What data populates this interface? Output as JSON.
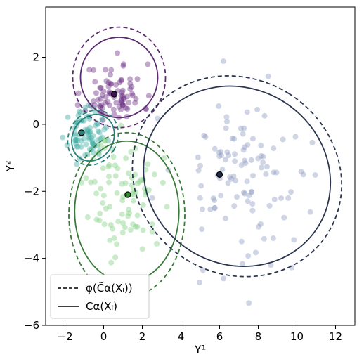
{
  "chart_data": {
    "type": "scatter",
    "title": "",
    "xlabel": "Y¹",
    "ylabel": "Y²",
    "xlim": [
      -3,
      13
    ],
    "ylim": [
      -6,
      3.5
    ],
    "xticks": [
      -2,
      0,
      2,
      4,
      6,
      8,
      10,
      12
    ],
    "yticks": [
      -6,
      -4,
      -2,
      0,
      2
    ],
    "grid": false,
    "legend_position": "lower-left",
    "legend": [
      {
        "label": "φ(C̃α(Xᵢ))",
        "style": "dashed"
      },
      {
        "label": "Cα(Xᵢ)",
        "style": "solid"
      }
    ],
    "clusters": [
      {
        "color": "#5b2a70",
        "point_color": "#6a2c80",
        "center": [
          0.55,
          0.9
        ],
        "spread": [
          0.75,
          0.45
        ],
        "n": 85,
        "seed": 11,
        "solid_ellipse": {
          "cx": 0.8,
          "cy": 1.4,
          "rx": 2.0,
          "ry": 1.2,
          "angle": 0
        },
        "dashed_ellipse": {
          "cx": 0.8,
          "cy": 1.4,
          "rx": 2.4,
          "ry": 1.5,
          "angle": 0
        }
      },
      {
        "color": "#2a7f7a",
        "point_color": "#3aa9a0",
        "center": [
          -0.9,
          -0.3
        ],
        "spread": [
          0.45,
          0.35
        ],
        "n": 75,
        "seed": 23,
        "solid_ellipse": {
          "cx": -0.55,
          "cy": -0.4,
          "rx": 1.05,
          "ry": 0.72,
          "angle": -30
        },
        "dashed_ellipse": {
          "cx": -0.55,
          "cy": -0.4,
          "rx": 1.25,
          "ry": 0.85,
          "angle": -30
        }
      },
      {
        "color": "#3a7a3a",
        "point_color": "#7fd07f",
        "center": [
          1.1,
          -2.1
        ],
        "spread": [
          0.95,
          0.85
        ],
        "n": 90,
        "seed": 37,
        "solid_ellipse": {
          "cx": 1.2,
          "cy": -2.6,
          "rx": 2.7,
          "ry": 2.1,
          "angle": 0
        },
        "dashed_ellipse": {
          "cx": 1.2,
          "cy": -2.7,
          "rx": 3.0,
          "ry": 2.45,
          "angle": 0
        }
      },
      {
        "color": "#2a3550",
        "point_color": "#8f9cc0",
        "center": [
          7.3,
          -1.5
        ],
        "spread": [
          1.8,
          1.35
        ],
        "n": 110,
        "seed": 53,
        "solid_ellipse": {
          "cx": 6.9,
          "cy": -1.55,
          "rx": 4.55,
          "ry": 2.85,
          "angle": 58
        },
        "dashed_ellipse": {
          "cx": 6.9,
          "cy": -1.55,
          "rx": 5.05,
          "ry": 3.2,
          "angle": 58
        }
      }
    ],
    "highlighted_points": [
      {
        "x": 0.55,
        "y": 0.9,
        "color": "#3d1450"
      },
      {
        "x": -1.15,
        "y": -0.25,
        "color": "#2a7f7a"
      },
      {
        "x": 1.25,
        "y": -2.1,
        "color": "#2f8a2f"
      },
      {
        "x": 6.0,
        "y": -1.5,
        "color": "#1f2a44"
      }
    ]
  }
}
